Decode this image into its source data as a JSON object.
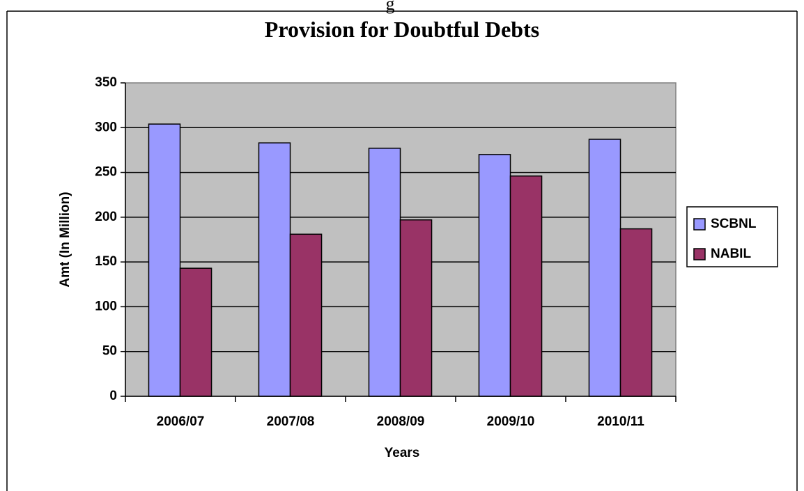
{
  "page": {
    "top_fragment": "g"
  },
  "chart_data": {
    "type": "bar",
    "title": "Provision for Doubtful Debts",
    "xlabel": "Years",
    "ylabel": "Amt (In Million)",
    "categories": [
      "2006/07",
      "2007/08",
      "2008/09",
      "2009/10",
      "2010/11"
    ],
    "series": [
      {
        "name": "SCBNL",
        "color": "#9999FF",
        "values": [
          304,
          283,
          277,
          270,
          287
        ]
      },
      {
        "name": "NABIL",
        "color": "#993366",
        "values": [
          143,
          181,
          197,
          246,
          187
        ]
      }
    ],
    "ylim": [
      0,
      350
    ],
    "yticks": [
      0,
      50,
      100,
      150,
      200,
      250,
      300,
      350
    ],
    "grid": true,
    "plot_background": "#C0C0C0",
    "legend_position": "right"
  }
}
